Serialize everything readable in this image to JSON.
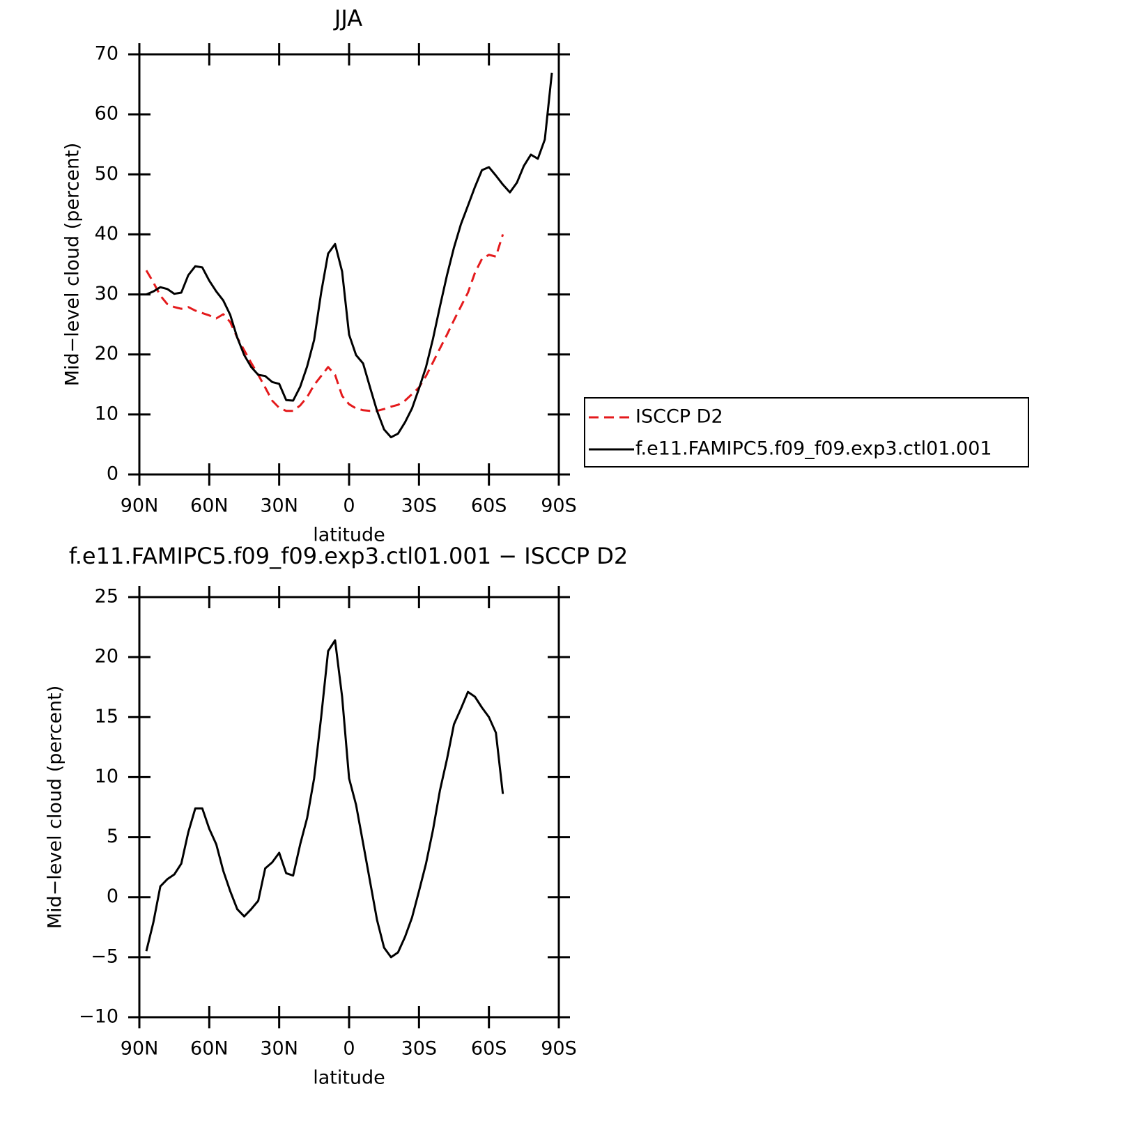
{
  "chart_data": [
    {
      "type": "line",
      "title": "JJA",
      "xlabel": "latitude",
      "ylabel": "Mid−level cloud (percent)",
      "x": [
        87,
        84,
        81,
        78,
        75,
        72,
        69,
        66,
        63,
        60,
        57,
        54,
        51,
        48,
        45,
        42,
        39,
        36,
        33,
        30,
        27,
        24,
        21,
        18,
        15,
        12,
        9,
        6,
        3,
        0,
        -3,
        -6,
        -9,
        -12,
        -15,
        -18,
        -21,
        -24,
        -27,
        -30,
        -33,
        -36,
        -39,
        -42,
        -45,
        -48,
        -51,
        -54,
        -57,
        -60,
        -63,
        -66,
        -69,
        -72,
        -75,
        -78,
        -81,
        -84,
        -87
      ],
      "series": [
        {
          "name": "ISCCP D2",
          "color": "#e41a1c",
          "linestyle": "dashed",
          "values": [
            34.0,
            32.0,
            29.8,
            28.4,
            27.9,
            27.6,
            27.9,
            27.3,
            26.9,
            26.5,
            26.0,
            26.7,
            25.4,
            22.8,
            20.7,
            18.6,
            16.6,
            14.5,
            12.3,
            11.1,
            10.6,
            10.6,
            11.5,
            12.9,
            14.9,
            16.4,
            17.9,
            16.6,
            13.1,
            11.7,
            11.0,
            10.7,
            10.6,
            10.6,
            10.9,
            11.3,
            11.6,
            12.3,
            13.4,
            14.5,
            16.4,
            18.7,
            21.0,
            23.3,
            25.7,
            28.0,
            30.3,
            33.6,
            35.9,
            36.6,
            36.3,
            40.0,
            null,
            null,
            null,
            null,
            null,
            null,
            null
          ]
        },
        {
          "name": "f.e11.FAMIPC5.f09_f09.exp3.ctl01.001",
          "color": "#000000",
          "linestyle": "solid",
          "values": [
            30.0,
            30.5,
            31.2,
            30.9,
            30.1,
            30.3,
            33.2,
            34.7,
            34.5,
            32.3,
            30.5,
            29.0,
            26.6,
            22.8,
            19.9,
            17.9,
            16.6,
            16.4,
            15.4,
            15.1,
            12.4,
            12.3,
            14.6,
            18.0,
            22.4,
            30.3,
            36.8,
            38.4,
            33.8,
            23.3,
            19.9,
            18.5,
            14.5,
            10.6,
            7.5,
            6.2,
            6.8,
            8.7,
            11.0,
            14.3,
            17.9,
            22.6,
            28.0,
            33.2,
            37.8,
            41.7,
            44.8,
            47.9,
            50.7,
            51.2,
            49.8,
            48.3,
            47.0,
            48.6,
            51.4,
            53.3,
            52.6,
            55.8,
            66.9
          ]
        }
      ],
      "xlim": [
        90,
        -90
      ],
      "xticks": [
        {
          "value": 90,
          "label": "90N"
        },
        {
          "value": 60,
          "label": "60N"
        },
        {
          "value": 30,
          "label": "30N"
        },
        0,
        {
          "value": -30,
          "label": "30S"
        },
        {
          "value": -60,
          "label": "60S"
        },
        {
          "value": -90,
          "label": "90S"
        }
      ],
      "ylim": [
        0,
        70
      ],
      "yticks": [
        0,
        10,
        20,
        30,
        40,
        50,
        60,
        70
      ],
      "grid": false,
      "legend": "outside-right"
    },
    {
      "type": "line",
      "title": "f.e11.FAMIPC5.f09_f09.exp3.ctl01.001 − ISCCP D2",
      "xlabel": "latitude",
      "ylabel": "Mid−level cloud (percent)",
      "x": [
        87,
        84,
        81,
        78,
        75,
        72,
        69,
        66,
        63,
        60,
        57,
        54,
        51,
        48,
        45,
        42,
        39,
        36,
        33,
        30,
        27,
        24,
        21,
        18,
        15,
        12,
        9,
        6,
        3,
        0,
        -3,
        -6,
        -9,
        -12,
        -15,
        -18,
        -21,
        -24,
        -27,
        -30,
        -33,
        -36,
        -39,
        -42,
        -45,
        -48,
        -51,
        -54,
        -57,
        -60,
        -63,
        -66,
        -69,
        -72,
        -75,
        -78,
        -81,
        -84,
        -87
      ],
      "values": [
        -4.5,
        -2.1,
        0.9,
        1.5,
        1.9,
        2.8,
        5.4,
        7.4,
        7.4,
        5.7,
        4.4,
        2.2,
        0.5,
        -1.0,
        -1.6,
        -1.0,
        -0.3,
        2.4,
        2.9,
        3.7,
        2.0,
        1.8,
        4.4,
        6.6,
        9.9,
        15.0,
        20.5,
        21.4,
        16.7,
        9.9,
        7.7,
        4.5,
        1.3,
        -1.9,
        -4.2,
        -5.0,
        -4.6,
        -3.3,
        -1.7,
        0.5,
        2.8,
        5.6,
        8.9,
        11.5,
        14.4,
        15.7,
        17.1,
        16.7,
        15.8,
        15.0,
        13.7,
        8.6,
        null,
        null,
        null,
        null,
        null,
        null,
        null
      ],
      "color": "#000000",
      "xlim": [
        90,
        -90
      ],
      "xticks": [
        {
          "value": 90,
          "label": "90N"
        },
        {
          "value": 60,
          "label": "60N"
        },
        {
          "value": 30,
          "label": "30N"
        },
        0,
        {
          "value": -30,
          "label": "30S"
        },
        {
          "value": -60,
          "label": "60S"
        },
        {
          "value": -90,
          "label": "90S"
        }
      ],
      "ylim": [
        -10,
        25
      ],
      "yticks": [
        {
          "value": -10,
          "label": "−10"
        },
        {
          "value": -5,
          "label": "−5"
        },
        0,
        5,
        10,
        15,
        20,
        25
      ],
      "grid": false
    }
  ]
}
